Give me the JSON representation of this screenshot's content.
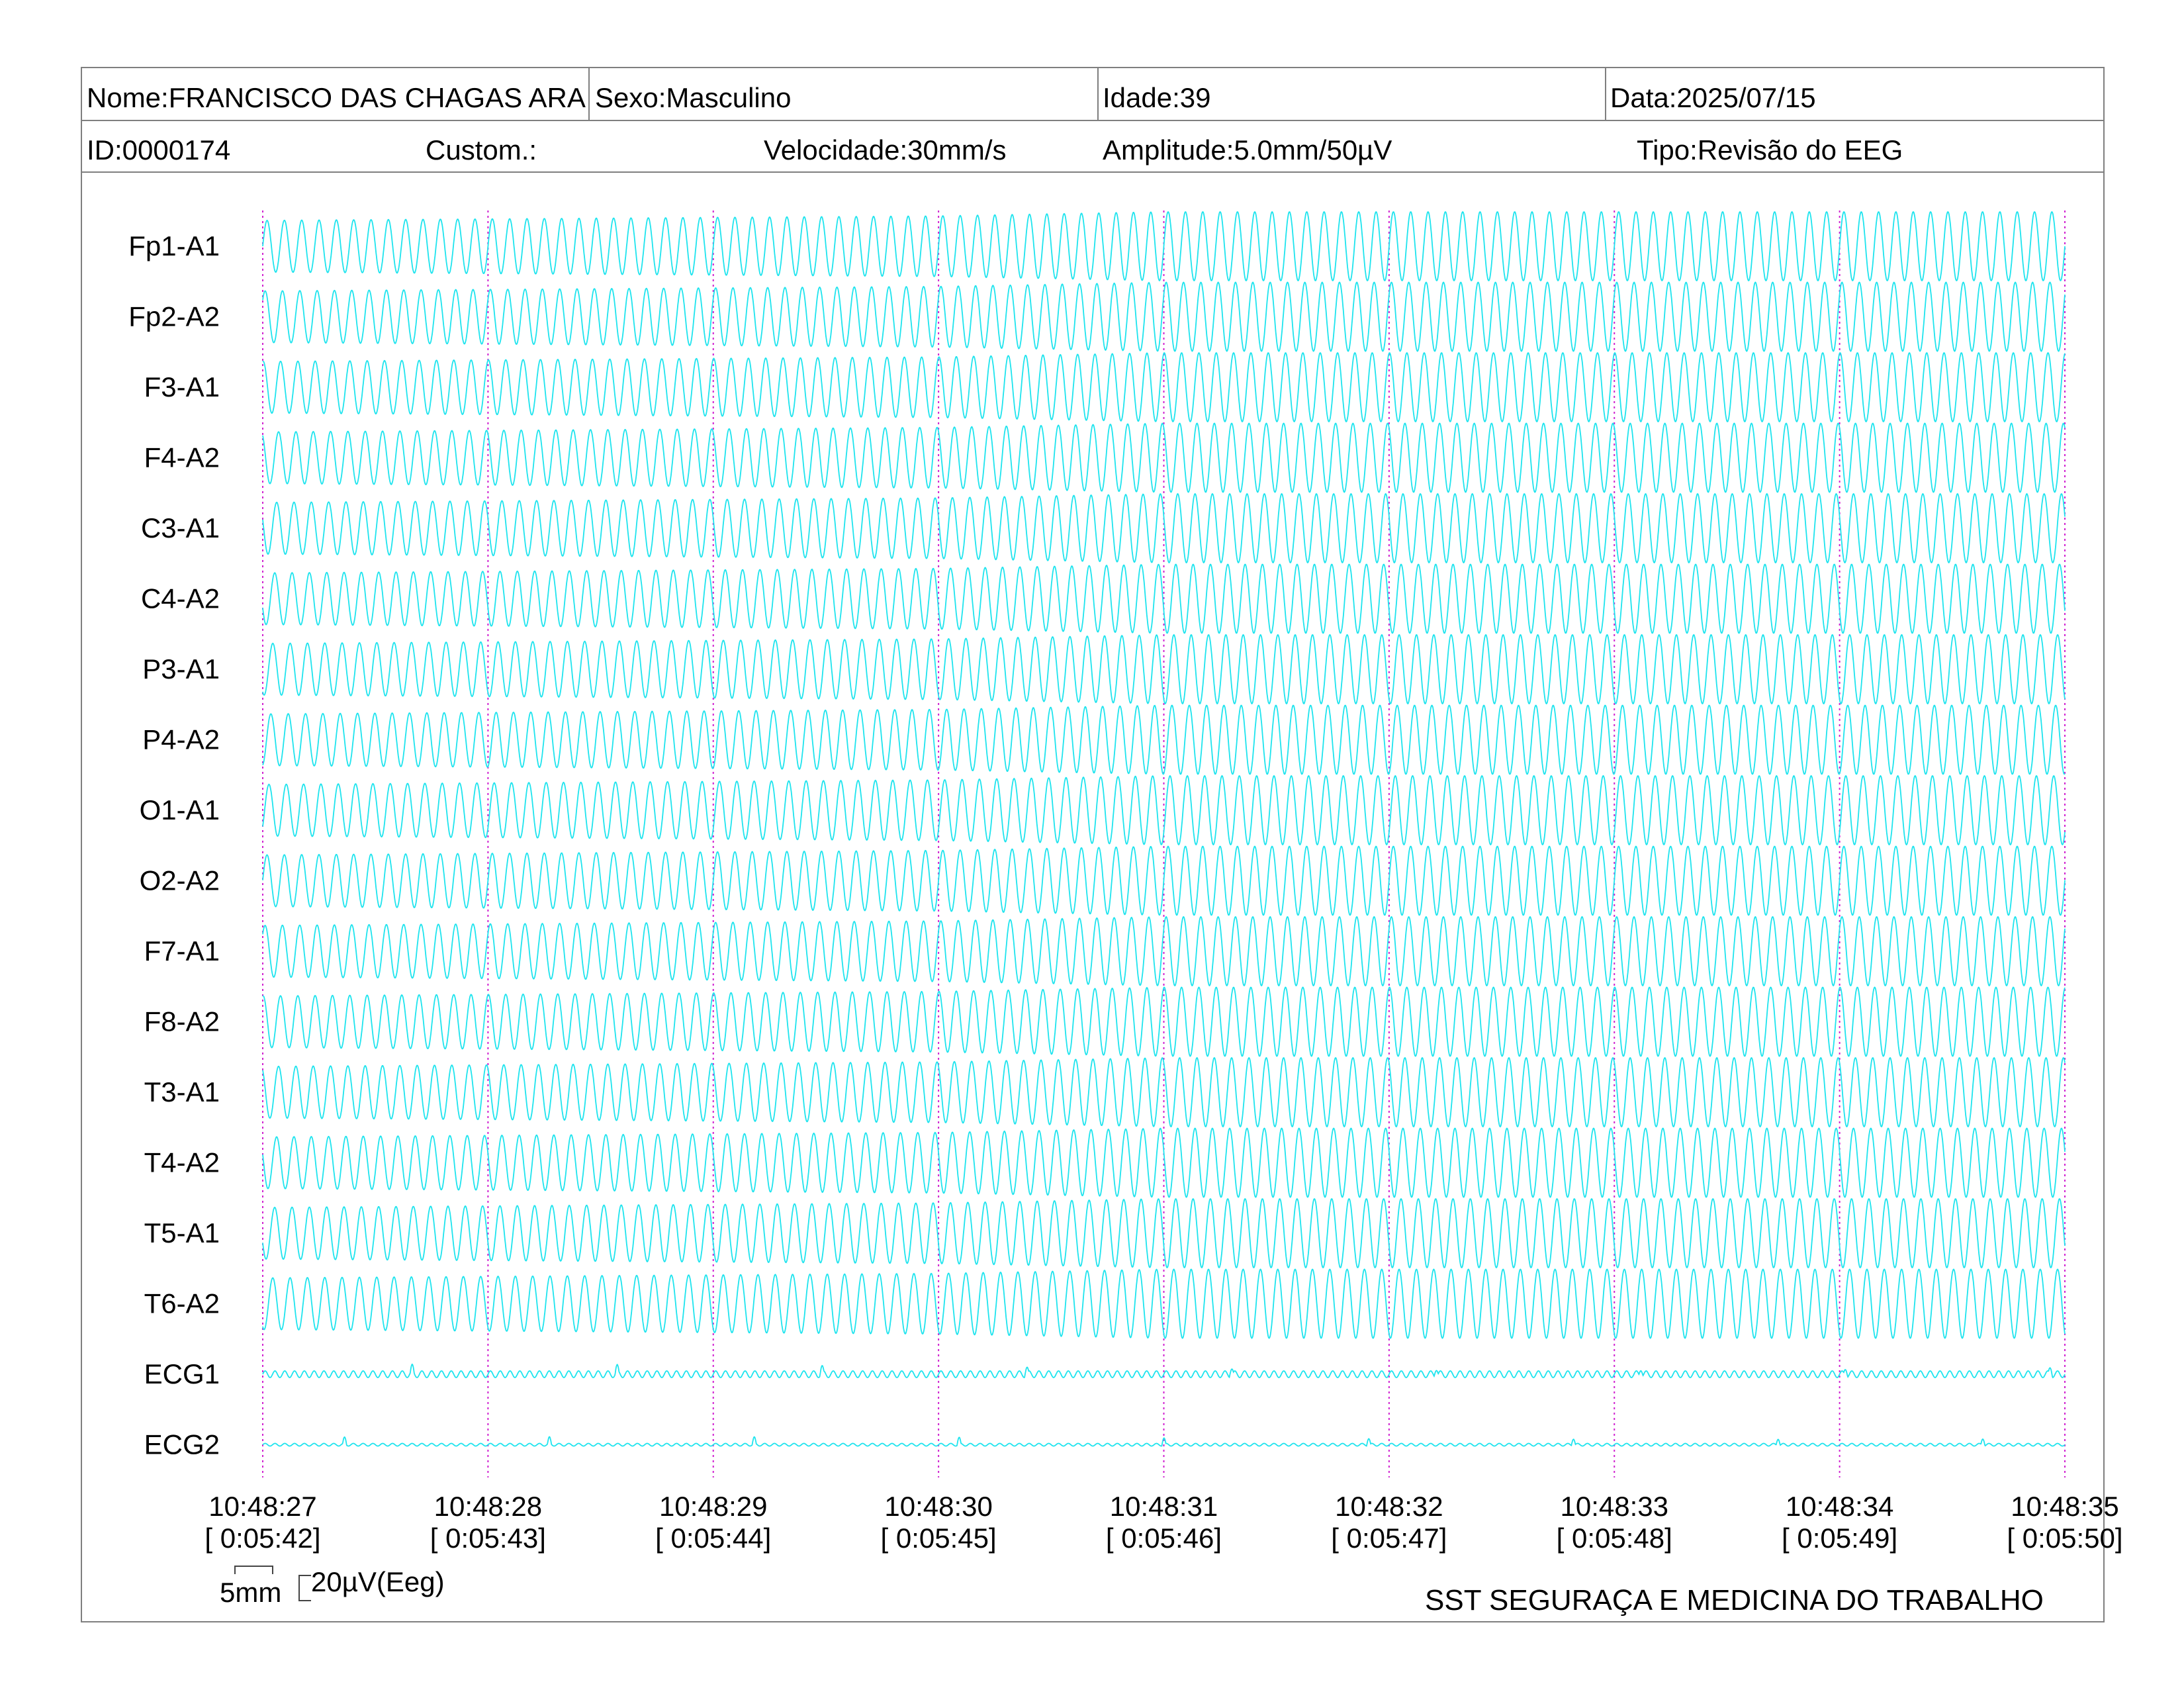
{
  "header": {
    "nome": "Nome:FRANCISCO DAS CHAGAS ARA",
    "sexo": "Sexo:Masculino",
    "idade": "Idade:39",
    "data": "Data:2025/07/15",
    "id": "ID:0000174",
    "custom": "Custom.:",
    "velocidade": "Velocidade:30mm/s",
    "amplitude": "Amplitude:5.0mm/50µV",
    "tipo": "Tipo:Revisão do EEG"
  },
  "chart_data": {
    "type": "line",
    "title": "",
    "channels": [
      "Fp1-A1",
      "Fp2-A2",
      "F3-A1",
      "F4-A2",
      "C3-A1",
      "C4-A2",
      "P3-A1",
      "P4-A2",
      "O1-A1",
      "O2-A2",
      "F7-A1",
      "F8-A2",
      "T3-A1",
      "T4-A2",
      "T5-A1",
      "T6-A2",
      "ECG1",
      "ECG2"
    ],
    "time_ticks": [
      {
        "clock": "10:48:27",
        "elapsed": "[ 0:05:42]"
      },
      {
        "clock": "10:48:28",
        "elapsed": "[ 0:05:43]"
      },
      {
        "clock": "10:48:29",
        "elapsed": "[ 0:05:44]"
      },
      {
        "clock": "10:48:30",
        "elapsed": "[ 0:05:45]"
      },
      {
        "clock": "10:48:31",
        "elapsed": "[ 0:05:46]"
      },
      {
        "clock": "10:48:32",
        "elapsed": "[ 0:05:47]"
      },
      {
        "clock": "10:48:33",
        "elapsed": "[ 0:05:48]"
      },
      {
        "clock": "10:48:34",
        "elapsed": "[ 0:05:49]"
      },
      {
        "clock": "10:48:35",
        "elapsed": "[ 0:05:50]"
      }
    ],
    "xlim_seconds": [
      0,
      8
    ],
    "eeg_waveform": {
      "frequency_hz": 13,
      "amplitude_profile": [
        {
          "t": 0,
          "rel": 0.75
        },
        {
          "t": 3,
          "rel": 0.88
        },
        {
          "t": 4,
          "rel": 1.0
        },
        {
          "t": 8,
          "rel": 1.0
        }
      ]
    },
    "ecg_beats_per_second": 1.1,
    "trace_color": "#1ee4ee",
    "marker_color": "#d020d0",
    "grid": false
  },
  "scale_bar": {
    "time_label": "5mm",
    "amp_label": "20µV(Eeg)"
  },
  "footer": {
    "org": "SST SEGURAÇA E MEDICINA DO TRABALHO"
  }
}
